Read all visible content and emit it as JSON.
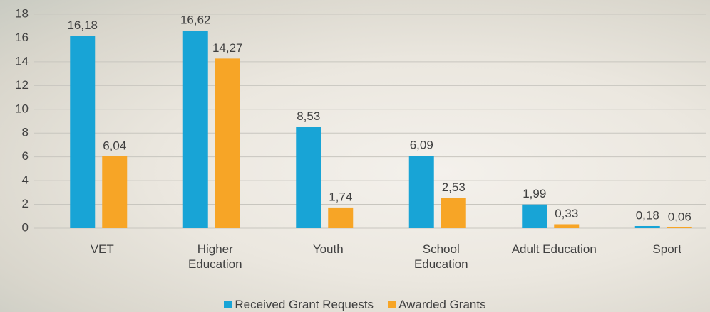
{
  "chart_data": {
    "type": "bar",
    "categories": [
      "VET",
      "Higher Education",
      "Youth",
      "School Education",
      "Adult Education",
      "Sport"
    ],
    "series": [
      {
        "name": "Received Grant Requests",
        "color": "#18a4d6",
        "values": [
          16.18,
          16.62,
          8.53,
          6.09,
          1.99,
          0.18
        ],
        "value_labels": [
          "16,18",
          "16,62",
          "8,53",
          "6,09",
          "1,99",
          "0,18"
        ]
      },
      {
        "name": "Awarded Grants",
        "color": "#f7a526",
        "values": [
          6.04,
          14.27,
          1.74,
          2.53,
          0.33,
          0.06
        ],
        "value_labels": [
          "6,04",
          "14,27",
          "1,74",
          "2,53",
          "0,33",
          "0,06"
        ]
      }
    ],
    "ylim": [
      0,
      18
    ],
    "yticks": [
      0,
      2,
      4,
      6,
      8,
      10,
      12,
      14,
      16,
      18
    ],
    "grid": true,
    "legend": "bottom"
  }
}
